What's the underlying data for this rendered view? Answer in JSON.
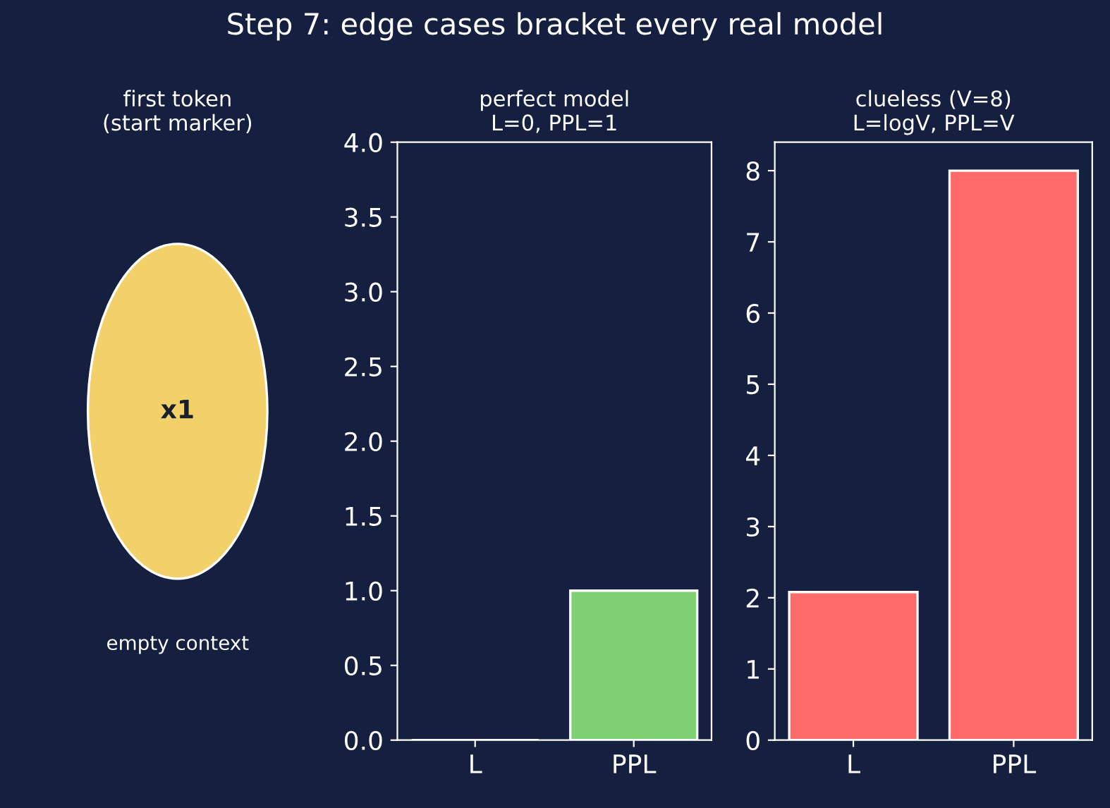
{
  "chart_data": [
    {
      "type": "other",
      "title": "Step 7: edge cases bracket every real model",
      "subtitle": "first token\n(start marker)",
      "annotations": [
        "x1",
        "empty context"
      ],
      "color": "#f2d16b"
    },
    {
      "type": "bar",
      "title": "perfect model\nL=0, PPL=1",
      "categories": [
        "L",
        "PPL"
      ],
      "values": [
        0,
        1
      ],
      "color": "#7fd173",
      "ylim": [
        0,
        4
      ],
      "yticks": [
        {
          "value": 0,
          "label": "0.0"
        },
        0.5,
        {
          "value": 1,
          "label": "1.0"
        },
        1.5,
        {
          "value": 2,
          "label": "2.0"
        },
        2.5,
        {
          "value": 3,
          "label": "3.0"
        },
        3.5,
        {
          "value": 4,
          "label": "4.0"
        }
      ],
      "grid": false,
      "legend": false
    },
    {
      "type": "bar",
      "title": "clueless (V=8)\nL=logV, PPL=V",
      "categories": [
        "L",
        "PPL"
      ],
      "values": [
        2.08,
        8
      ],
      "color": "#ff6b6b",
      "ylim": [
        0,
        8.4
      ],
      "yticks": [
        0,
        1,
        2,
        3,
        4,
        5,
        6,
        7,
        8
      ],
      "grid": false,
      "legend": false
    }
  ]
}
